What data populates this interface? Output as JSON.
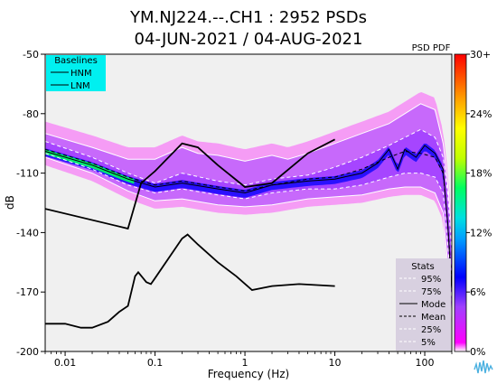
{
  "title_line1": "YM.NJ224.--.CH1 : 2952 PSDs",
  "title_line2": "04-JUN-2021 / 04-AUG-2021",
  "colorbar_title": "PSD PDF",
  "colors": {
    "plot_background": "#f0f0f0",
    "hnm_lnm": "#000000",
    "percentile_lines": "#ffffff",
    "baselines_box": "#00f0f0",
    "stats_box": "#d8d0e0",
    "colormap": [
      "#ff00ff",
      "#a040ff",
      "#0000ff",
      "#00a0ff",
      "#00e0e0",
      "#00ff60",
      "#c0ff00",
      "#ffff00",
      "#ffa000",
      "#ff2000",
      "#ff0000"
    ]
  },
  "chart_data": {
    "type": "heatmap",
    "xlabel": "Frequency (Hz)",
    "ylabel": "dB",
    "x_scale": "log",
    "xlim": [
      0.006,
      200
    ],
    "ylim": [
      -200,
      -50
    ],
    "x_ticks": [
      {
        "value": 0.01,
        "label": "0.01"
      },
      {
        "value": 0.1,
        "label": "0.1"
      },
      {
        "value": 1,
        "label": "1"
      },
      {
        "value": 10,
        "label": "10"
      },
      {
        "value": 100,
        "label": "100"
      }
    ],
    "y_ticks": [
      {
        "value": -50,
        "label": "-50"
      },
      {
        "value": -80,
        "label": "-80"
      },
      {
        "value": -110,
        "label": "-110"
      },
      {
        "value": -140,
        "label": "-140"
      },
      {
        "value": -170,
        "label": "-170"
      },
      {
        "value": -200,
        "label": "-200"
      }
    ],
    "colorbar_ticks": [
      "30+",
      "24%",
      "18%",
      "12%",
      "6%",
      "0%"
    ],
    "baselines_legend": {
      "title": "Baselines",
      "items": [
        "HNM",
        "LNM"
      ]
    },
    "stats_legend": {
      "title": "Stats",
      "items": [
        "95%",
        "75%",
        "Mode",
        "Mean",
        "25%",
        "5%"
      ]
    },
    "series": [
      {
        "name": "HNM",
        "points": [
          [
            0.006,
            -128
          ],
          [
            0.05,
            -138
          ],
          [
            0.07,
            -115
          ],
          [
            0.1,
            -109
          ],
          [
            0.2,
            -95
          ],
          [
            0.3,
            -97
          ],
          [
            0.5,
            -106
          ],
          [
            1,
            -117
          ],
          [
            2,
            -115
          ],
          [
            5,
            -100
          ],
          [
            10,
            -93
          ]
        ]
      },
      {
        "name": "LNM",
        "points": [
          [
            0.006,
            -186
          ],
          [
            0.01,
            -186
          ],
          [
            0.015,
            -188
          ],
          [
            0.02,
            -188
          ],
          [
            0.03,
            -185
          ],
          [
            0.04,
            -180
          ],
          [
            0.05,
            -177
          ],
          [
            0.06,
            -162
          ],
          [
            0.065,
            -160
          ],
          [
            0.08,
            -165
          ],
          [
            0.09,
            -166
          ],
          [
            0.1,
            -163
          ],
          [
            0.2,
            -143
          ],
          [
            0.23,
            -141
          ],
          [
            0.3,
            -146
          ],
          [
            0.5,
            -155
          ],
          [
            0.8,
            -162
          ],
          [
            1.2,
            -169
          ],
          [
            2,
            -167
          ],
          [
            4,
            -166
          ],
          [
            10,
            -167
          ]
        ]
      },
      {
        "name": "95%",
        "points": [
          [
            0.006,
            -90
          ],
          [
            0.02,
            -97
          ],
          [
            0.05,
            -103
          ],
          [
            0.1,
            -103
          ],
          [
            0.2,
            -97
          ],
          [
            0.3,
            -100
          ],
          [
            0.5,
            -101
          ],
          [
            1,
            -104
          ],
          [
            2,
            -101
          ],
          [
            3,
            -103
          ],
          [
            5,
            -100
          ],
          [
            10,
            -95
          ],
          [
            20,
            -90
          ],
          [
            40,
            -85
          ],
          [
            60,
            -80
          ],
          [
            90,
            -75
          ],
          [
            130,
            -78
          ],
          [
            160,
            -95
          ],
          [
            180,
            -115
          ],
          [
            200,
            -140
          ]
        ]
      },
      {
        "name": "75%",
        "points": [
          [
            0.006,
            -94
          ],
          [
            0.02,
            -102
          ],
          [
            0.05,
            -110
          ],
          [
            0.1,
            -115
          ],
          [
            0.2,
            -110
          ],
          [
            0.5,
            -114
          ],
          [
            1,
            -116
          ],
          [
            2,
            -113
          ],
          [
            5,
            -111
          ],
          [
            10,
            -107
          ],
          [
            20,
            -102
          ],
          [
            40,
            -96
          ],
          [
            60,
            -92
          ],
          [
            90,
            -88
          ],
          [
            130,
            -92
          ],
          [
            160,
            -102
          ],
          [
            180,
            -120
          ],
          [
            200,
            -150
          ]
        ]
      },
      {
        "name": "Mode",
        "points": [
          [
            0.006,
            -99
          ],
          [
            0.02,
            -106
          ],
          [
            0.05,
            -113
          ],
          [
            0.1,
            -117
          ],
          [
            0.2,
            -115
          ],
          [
            0.5,
            -118
          ],
          [
            1,
            -120
          ],
          [
            2,
            -116
          ],
          [
            5,
            -114
          ],
          [
            10,
            -113
          ],
          [
            20,
            -110
          ],
          [
            30,
            -105
          ],
          [
            40,
            -98
          ],
          [
            50,
            -108
          ],
          [
            60,
            -98
          ],
          [
            80,
            -102
          ],
          [
            100,
            -96
          ],
          [
            130,
            -100
          ],
          [
            160,
            -108
          ],
          [
            180,
            -135
          ],
          [
            200,
            -170
          ]
        ]
      },
      {
        "name": "Mean",
        "points": [
          [
            0.006,
            -98
          ],
          [
            0.02,
            -105
          ],
          [
            0.05,
            -112
          ],
          [
            0.1,
            -116
          ],
          [
            0.2,
            -114
          ],
          [
            0.5,
            -117
          ],
          [
            1,
            -119
          ],
          [
            2,
            -116
          ],
          [
            5,
            -113
          ],
          [
            10,
            -112
          ],
          [
            20,
            -108
          ],
          [
            40,
            -102
          ],
          [
            60,
            -99
          ],
          [
            90,
            -100
          ],
          [
            130,
            -102
          ],
          [
            160,
            -110
          ],
          [
            180,
            -135
          ],
          [
            200,
            -165
          ]
        ]
      },
      {
        "name": "25%",
        "points": [
          [
            0.006,
            -100
          ],
          [
            0.02,
            -108
          ],
          [
            0.05,
            -116
          ],
          [
            0.1,
            -120
          ],
          [
            0.2,
            -118
          ],
          [
            0.5,
            -121
          ],
          [
            1,
            -123
          ],
          [
            2,
            -120
          ],
          [
            5,
            -118
          ],
          [
            10,
            -118
          ],
          [
            20,
            -116
          ],
          [
            40,
            -112
          ],
          [
            60,
            -110
          ],
          [
            90,
            -110
          ],
          [
            130,
            -112
          ],
          [
            160,
            -120
          ],
          [
            180,
            -145
          ],
          [
            200,
            -175
          ]
        ]
      },
      {
        "name": "5%",
        "points": [
          [
            0.006,
            -102
          ],
          [
            0.02,
            -110
          ],
          [
            0.05,
            -119
          ],
          [
            0.1,
            -124
          ],
          [
            0.2,
            -123
          ],
          [
            0.5,
            -126
          ],
          [
            1,
            -127
          ],
          [
            2,
            -126
          ],
          [
            5,
            -123
          ],
          [
            10,
            -122
          ],
          [
            20,
            -121
          ],
          [
            40,
            -118
          ],
          [
            60,
            -117
          ],
          [
            90,
            -117
          ],
          [
            130,
            -120
          ],
          [
            160,
            -130
          ],
          [
            180,
            -155
          ],
          [
            200,
            -185
          ]
        ]
      }
    ]
  }
}
